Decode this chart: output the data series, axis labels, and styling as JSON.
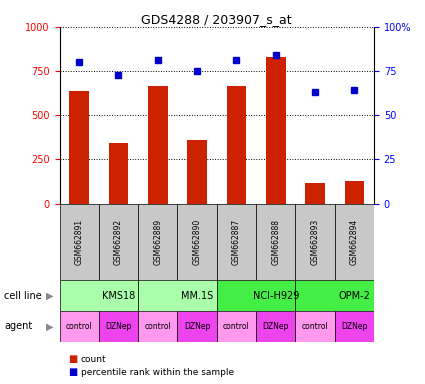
{
  "title": "GDS4288 / 203907_s_at",
  "samples": [
    "GSM662891",
    "GSM662892",
    "GSM662889",
    "GSM662890",
    "GSM662887",
    "GSM662888",
    "GSM662893",
    "GSM662894"
  ],
  "counts": [
    635,
    340,
    665,
    360,
    665,
    830,
    115,
    125
  ],
  "percentiles": [
    80,
    73,
    81,
    75,
    81,
    84,
    63,
    64
  ],
  "cell_lines": [
    {
      "name": "KMS18",
      "span": [
        0,
        2
      ],
      "color": "#AAFFAA"
    },
    {
      "name": "MM.1S",
      "span": [
        2,
        4
      ],
      "color": "#AAFFAA"
    },
    {
      "name": "NCI-H929",
      "span": [
        4,
        6
      ],
      "color": "#44EE44"
    },
    {
      "name": "OPM-2",
      "span": [
        6,
        8
      ],
      "color": "#44EE44"
    }
  ],
  "agents": [
    "control",
    "DZNep",
    "control",
    "DZNep",
    "control",
    "DZNep",
    "control",
    "DZNep"
  ],
  "agent_color_control": "#FF99EE",
  "agent_color_dznep": "#EE44EE",
  "bar_color": "#CC2200",
  "dot_color": "#0000CC",
  "ylim_left": [
    0,
    1000
  ],
  "ylim_right": [
    0,
    100
  ],
  "yticks_left": [
    0,
    250,
    500,
    750,
    1000
  ],
  "yticks_right": [
    0,
    25,
    50,
    75,
    100
  ],
  "bar_width": 0.5,
  "sample_bg": "#C8C8C8",
  "title_fontsize": 9,
  "tick_fontsize": 7,
  "label_fontsize": 7,
  "agent_fontsize": 5.5,
  "sample_fontsize": 5.5
}
